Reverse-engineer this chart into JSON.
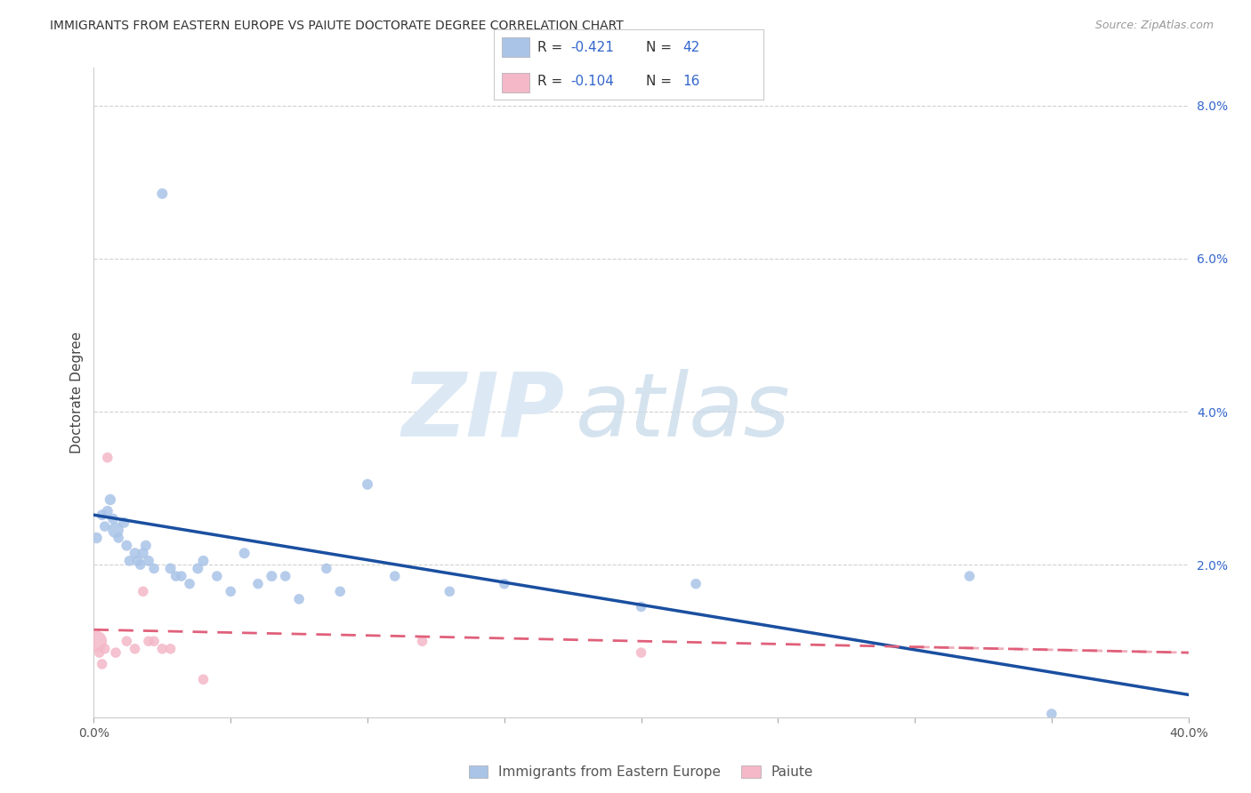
{
  "title": "IMMIGRANTS FROM EASTERN EUROPE VS PAIUTE DOCTORATE DEGREE CORRELATION CHART",
  "source": "Source: ZipAtlas.com",
  "ylabel": "Doctorate Degree",
  "xlim": [
    0.0,
    0.4
  ],
  "ylim": [
    0.0,
    0.085
  ],
  "x_ticks": [
    0.0,
    0.05,
    0.1,
    0.15,
    0.2,
    0.25,
    0.3,
    0.35,
    0.4
  ],
  "x_tick_labels": [
    "0.0%",
    "",
    "",
    "",
    "",
    "",
    "",
    "",
    "40.0%"
  ],
  "y_ticks": [
    0.0,
    0.02,
    0.04,
    0.06,
    0.08
  ],
  "y_tick_labels": [
    "",
    "2.0%",
    "4.0%",
    "6.0%",
    "8.0%"
  ],
  "grid_color": "#cccccc",
  "background_color": "#ffffff",
  "blue_color": "#aac4e8",
  "pink_color": "#f4b8c8",
  "blue_line_color": "#1a4fa0",
  "pink_line_color": "#e0607a",
  "text_blue_color": "#3366cc",
  "legend_bottom_blue": "Immigrants from Eastern Europe",
  "legend_bottom_pink": "Paiute",
  "blue_points_x": [
    0.001,
    0.003,
    0.004,
    0.005,
    0.006,
    0.007,
    0.008,
    0.009,
    0.011,
    0.012,
    0.013,
    0.015,
    0.016,
    0.017,
    0.018,
    0.019,
    0.02,
    0.022,
    0.025,
    0.028,
    0.03,
    0.032,
    0.035,
    0.038,
    0.04,
    0.045,
    0.05,
    0.055,
    0.06,
    0.065,
    0.07,
    0.075,
    0.085,
    0.09,
    0.1,
    0.11,
    0.13,
    0.15,
    0.2,
    0.22,
    0.32,
    0.35
  ],
  "blue_points_y": [
    0.0235,
    0.0265,
    0.025,
    0.027,
    0.0285,
    0.026,
    0.0245,
    0.0235,
    0.0255,
    0.0225,
    0.0205,
    0.0215,
    0.0205,
    0.02,
    0.0215,
    0.0225,
    0.0205,
    0.0195,
    0.0685,
    0.0195,
    0.0185,
    0.0185,
    0.0175,
    0.0195,
    0.0205,
    0.0185,
    0.0165,
    0.0215,
    0.0175,
    0.0185,
    0.0185,
    0.0155,
    0.0195,
    0.0165,
    0.0305,
    0.0185,
    0.0165,
    0.0175,
    0.0145,
    0.0175,
    0.0185,
    0.0005
  ],
  "blue_sizes": [
    80,
    75,
    70,
    75,
    80,
    75,
    160,
    70,
    75,
    75,
    70,
    75,
    75,
    70,
    75,
    75,
    75,
    70,
    75,
    75,
    70,
    70,
    70,
    75,
    75,
    70,
    70,
    75,
    70,
    75,
    70,
    70,
    70,
    70,
    75,
    70,
    70,
    70,
    70,
    70,
    70,
    70
  ],
  "pink_points_x": [
    0.001,
    0.002,
    0.003,
    0.004,
    0.005,
    0.008,
    0.012,
    0.015,
    0.018,
    0.02,
    0.022,
    0.025,
    0.028,
    0.04,
    0.12,
    0.2
  ],
  "pink_points_y": [
    0.01,
    0.0085,
    0.007,
    0.009,
    0.034,
    0.0085,
    0.01,
    0.009,
    0.0165,
    0.01,
    0.01,
    0.009,
    0.009,
    0.005,
    0.01,
    0.0085
  ],
  "pink_sizes": [
    280,
    70,
    70,
    70,
    70,
    70,
    70,
    70,
    70,
    70,
    70,
    70,
    70,
    70,
    70,
    70
  ],
  "blue_line_x0": 0.0,
  "blue_line_y0": 0.0265,
  "blue_line_x1": 0.4,
  "blue_line_y1": 0.003,
  "pink_line_x0": 0.0,
  "pink_line_y0": 0.0115,
  "pink_line_x1": 0.4,
  "pink_line_y1": 0.0085
}
